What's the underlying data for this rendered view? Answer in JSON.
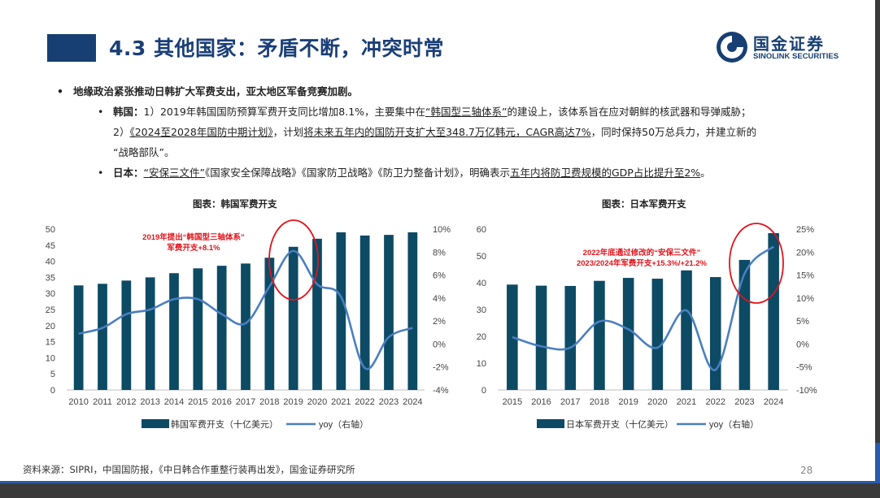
{
  "header": {
    "title": "4.3 其他国家：矛盾不断，冲突时常",
    "logo_cn": "国金证券",
    "logo_en": "SINOLINK SECURITIES"
  },
  "bullets": {
    "main": "地缘政治紧张推动日韩扩大军费支出，亚太地区军备竞赛加剧。",
    "korea_lead": "韩国：",
    "korea_p1": "1）2019年韩国国防预算军费开支同比增加8.1%，主要集中在",
    "korea_p1_ul": "“韩国型三轴体系”",
    "korea_p1_end": "的建设上，该体系旨在应对朝鲜的核武器和导弹威胁；",
    "korea_p2a": "2）",
    "korea_p2_ul1": "《2024至2028年国防中期计划》",
    "korea_p2b": "，计划",
    "korea_p2_ul2": "将未来五年内的国防开支扩大至348.7万亿韩元，CAGR高达7%",
    "korea_p2c": "，同时保持50万总兵力，并建立新的",
    "korea_p3": "“战略部队”。",
    "japan_lead": "日本：",
    "japan_ul1": "“安保三文件”",
    "japan_p1": "《国家安全保障战略》《国家防卫战略》《防卫力整备计划》，明确表示",
    "japan_ul2": "五年内将防卫费规模的GDP占比提升至2%",
    "japan_end": "。"
  },
  "chart_titles": {
    "korea": "图表：韩国军费开支",
    "japan": "图表：日本军费开支"
  },
  "source": "资料来源：SIPRI，中国国防报，《中日韩合作重整行装再出发》，国金证券研究所",
  "page_number": "28",
  "colors": {
    "bar": "#0d4a64",
    "line": "#4a7fc1",
    "circle": "#e0141c",
    "annotation": "#e0141c",
    "title": "#1a3f77"
  },
  "chart_data": [
    {
      "type": "bar",
      "title": "图表：韩国军费开支",
      "categories": [
        "2010",
        "2011",
        "2012",
        "2013",
        "2014",
        "2015",
        "2016",
        "2017",
        "2018",
        "2019",
        "2020",
        "2021",
        "2022",
        "2023",
        "2024"
      ],
      "series": [
        {
          "name": "韩国军费开支（十亿美元）",
          "type": "bar",
          "axis": "left",
          "values": [
            32.5,
            33,
            34,
            35,
            36.3,
            37.8,
            38.6,
            39.3,
            41.1,
            44.5,
            47,
            49,
            48,
            48.2,
            49
          ]
        },
        {
          "name": "yoy（右轴）",
          "type": "line",
          "axis": "right",
          "values": [
            0.9,
            1.4,
            2.6,
            3.0,
            3.9,
            3.9,
            2.6,
            1.8,
            5.0,
            8.1,
            5.2,
            4.1,
            -2.1,
            0.6,
            1.4
          ]
        }
      ],
      "ylim_left": [
        0,
        50
      ],
      "yticks_left": [
        "0",
        "5",
        "10",
        "15",
        "20",
        "25",
        "30",
        "35",
        "40",
        "45",
        "50"
      ],
      "ylim_right": [
        -4,
        10
      ],
      "yticks_right": [
        "-4%",
        "-2%",
        "0%",
        "2%",
        "4%",
        "6%",
        "8%",
        "10%"
      ],
      "annotation": [
        "2019年提出“韩国型三轴体系”",
        "军费开支+8.1%"
      ],
      "legend": [
        "韩国军费开支（十亿美元）",
        "yoy（右轴）"
      ],
      "legend_position": "bottom"
    },
    {
      "type": "bar",
      "title": "图表：日本军费开支",
      "categories": [
        "2015",
        "2016",
        "2017",
        "2018",
        "2019",
        "2020",
        "2021",
        "2022",
        "2023",
        "2024"
      ],
      "series": [
        {
          "name": "日本军费开支（十亿美元）",
          "type": "bar",
          "axis": "left",
          "values": [
            39.3,
            38.9,
            38.8,
            40.7,
            41.8,
            41.5,
            44.6,
            42.1,
            48.5,
            58.5
          ]
        },
        {
          "name": "yoy（右轴）",
          "type": "line",
          "axis": "right",
          "values": [
            1.5,
            -0.5,
            -0.8,
            4.9,
            3.2,
            -0.8,
            7.3,
            -5.6,
            15.3,
            21.2
          ]
        }
      ],
      "ylim_left": [
        0,
        60
      ],
      "yticks_left": [
        "0",
        "10",
        "20",
        "30",
        "40",
        "50",
        "60"
      ],
      "ylim_right": [
        -10,
        25
      ],
      "yticks_right": [
        "-10%",
        "-5%",
        "0%",
        "5%",
        "10%",
        "15%",
        "20%",
        "25%"
      ],
      "annotation": [
        "2022年底通过修改的“安保三文件”",
        "2023/2024年军费开支+15.3%/+21.2%"
      ],
      "legend": [
        "日本军费开支（十亿美元）",
        "yoy（右轴）"
      ],
      "legend_position": "bottom"
    }
  ]
}
